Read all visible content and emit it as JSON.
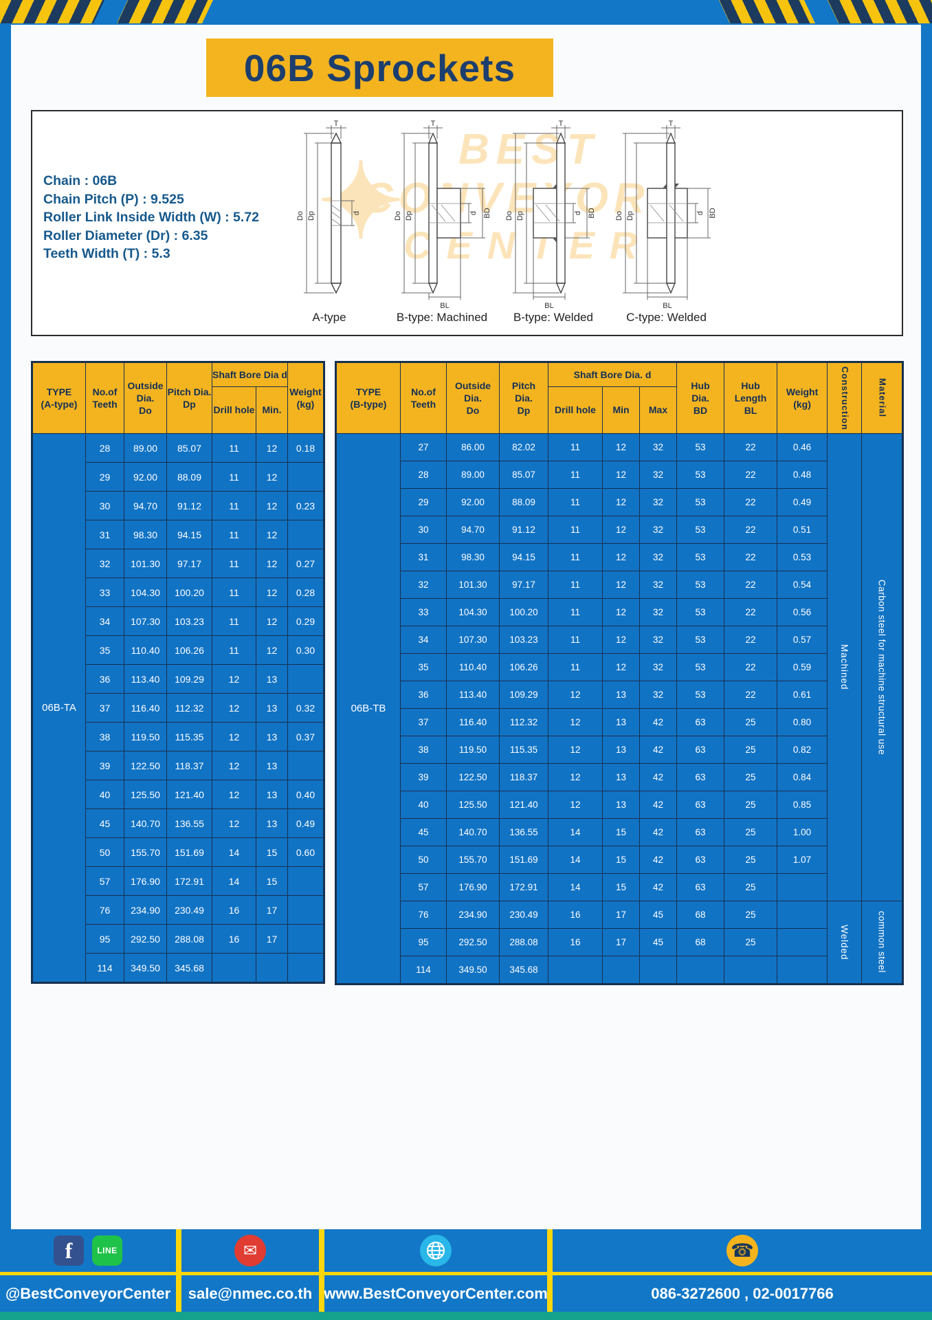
{
  "title": "06B Sprockets",
  "specs": {
    "lines": [
      "Chain : 06B",
      "Chain Pitch (P) : 9.525",
      "Roller Link Inside Width (W) : 5.72",
      "Roller Diameter (Dr) : 6.35",
      "Teeth Width (T) : 5.3"
    ]
  },
  "diagrams": {
    "captions": [
      "A-type",
      "B-type: Machined",
      "B-type: Welded",
      "C-type: Welded"
    ],
    "labels": {
      "T": "T",
      "Do": "Do",
      "Dp": "Dp",
      "d": "d",
      "BD": "BD",
      "BL": "BL"
    }
  },
  "watermark": {
    "line1": "BEST",
    "line2": "CONVEYOR",
    "line3": "CENTER",
    "star": "✦"
  },
  "table_a": {
    "type_label": "06B-TA",
    "headers": {
      "type": "TYPE\n(A-type)",
      "teeth": "No.of\nTeeth",
      "outside": "Outside\nDia.\nDo",
      "pitch": "Pitch Dia.\nDp",
      "bore_group": "Shaft Bore Dia d",
      "drill": "Drill hole",
      "min": "Min.",
      "weight": "Weight\n(kg)"
    },
    "rows": [
      [
        "28",
        "89.00",
        "85.07",
        "11",
        "12",
        "0.18"
      ],
      [
        "29",
        "92.00",
        "88.09",
        "11",
        "12",
        ""
      ],
      [
        "30",
        "94.70",
        "91.12",
        "11",
        "12",
        "0.23"
      ],
      [
        "31",
        "98.30",
        "94.15",
        "11",
        "12",
        ""
      ],
      [
        "32",
        "101.30",
        "97.17",
        "11",
        "12",
        "0.27"
      ],
      [
        "33",
        "104.30",
        "100.20",
        "11",
        "12",
        "0.28"
      ],
      [
        "34",
        "107.30",
        "103.23",
        "11",
        "12",
        "0.29"
      ],
      [
        "35",
        "110.40",
        "106.26",
        "11",
        "12",
        "0.30"
      ],
      [
        "36",
        "113.40",
        "109.29",
        "12",
        "13",
        ""
      ],
      [
        "37",
        "116.40",
        "112.32",
        "12",
        "13",
        "0.32"
      ],
      [
        "38",
        "119.50",
        "115.35",
        "12",
        "13",
        "0.37"
      ],
      [
        "39",
        "122.50",
        "118.37",
        "12",
        "13",
        ""
      ],
      [
        "40",
        "125.50",
        "121.40",
        "12",
        "13",
        "0.40"
      ],
      [
        "45",
        "140.70",
        "136.55",
        "12",
        "13",
        "0.49"
      ],
      [
        "50",
        "155.70",
        "151.69",
        "14",
        "15",
        "0.60"
      ],
      [
        "57",
        "176.90",
        "172.91",
        "14",
        "15",
        ""
      ],
      [
        "76",
        "234.90",
        "230.49",
        "16",
        "17",
        ""
      ],
      [
        "95",
        "292.50",
        "288.08",
        "16",
        "17",
        ""
      ],
      [
        "114",
        "349.50",
        "345.68",
        "",
        "",
        ""
      ]
    ]
  },
  "table_b": {
    "type_label": "06B-TB",
    "headers": {
      "type": "TYPE\n(B-type)",
      "teeth": "No.of\nTeeth",
      "outside": "Outside\nDia.\nDo",
      "pitch": "Pitch\nDia.\nDp",
      "bore_group": "Shaft Bore Dia. d",
      "drill": "Drill hole",
      "min": "Min",
      "max": "Max",
      "hub_dia": "Hub\nDia.\nBD",
      "hub_len": "Hub\nLength\nBL",
      "weight": "Weight\n(kg)",
      "construction": "Construction",
      "material": "Material"
    },
    "rows": [
      [
        "27",
        "86.00",
        "82.02",
        "11",
        "12",
        "32",
        "53",
        "22",
        "0.46"
      ],
      [
        "28",
        "89.00",
        "85.07",
        "11",
        "12",
        "32",
        "53",
        "22",
        "0.48"
      ],
      [
        "29",
        "92.00",
        "88.09",
        "11",
        "12",
        "32",
        "53",
        "22",
        "0.49"
      ],
      [
        "30",
        "94.70",
        "91.12",
        "11",
        "12",
        "32",
        "53",
        "22",
        "0.51"
      ],
      [
        "31",
        "98.30",
        "94.15",
        "11",
        "12",
        "32",
        "53",
        "22",
        "0.53"
      ],
      [
        "32",
        "101.30",
        "97.17",
        "11",
        "12",
        "32",
        "53",
        "22",
        "0.54"
      ],
      [
        "33",
        "104.30",
        "100.20",
        "11",
        "12",
        "32",
        "53",
        "22",
        "0.56"
      ],
      [
        "34",
        "107.30",
        "103.23",
        "11",
        "12",
        "32",
        "53",
        "22",
        "0.57"
      ],
      [
        "35",
        "110.40",
        "106.26",
        "11",
        "12",
        "32",
        "53",
        "22",
        "0.59"
      ],
      [
        "36",
        "113.40",
        "109.29",
        "12",
        "13",
        "32",
        "53",
        "22",
        "0.61"
      ],
      [
        "37",
        "116.40",
        "112.32",
        "12",
        "13",
        "42",
        "63",
        "25",
        "0.80"
      ],
      [
        "38",
        "119.50",
        "115.35",
        "12",
        "13",
        "42",
        "63",
        "25",
        "0.82"
      ],
      [
        "39",
        "122.50",
        "118.37",
        "12",
        "13",
        "42",
        "63",
        "25",
        "0.84"
      ],
      [
        "40",
        "125.50",
        "121.40",
        "12",
        "13",
        "42",
        "63",
        "25",
        "0.85"
      ],
      [
        "45",
        "140.70",
        "136.55",
        "14",
        "15",
        "42",
        "63",
        "25",
        "1.00"
      ],
      [
        "50",
        "155.70",
        "151.69",
        "14",
        "15",
        "42",
        "63",
        "25",
        "1.07"
      ],
      [
        "57",
        "176.90",
        "172.91",
        "14",
        "15",
        "42",
        "63",
        "25",
        ""
      ],
      [
        "76",
        "234.90",
        "230.49",
        "16",
        "17",
        "45",
        "68",
        "25",
        ""
      ],
      [
        "95",
        "292.50",
        "288.08",
        "16",
        "17",
        "45",
        "68",
        "25",
        ""
      ],
      [
        "114",
        "349.50",
        "345.68",
        "",
        "",
        "",
        "",
        "",
        ""
      ]
    ],
    "construction_groups": [
      {
        "label": "Machined",
        "rows": 17
      },
      {
        "label": "Welded",
        "rows": 3
      }
    ],
    "material_groups": [
      {
        "label": "Carbon steel for machine structural use",
        "rows": 17
      },
      {
        "label": "common steel",
        "rows": 3
      }
    ]
  },
  "footer": {
    "items": [
      {
        "label": "@BestConveyorCenter"
      },
      {
        "label": "sale@nmec.co.th"
      },
      {
        "label": "www.BestConveyorCenter.com"
      },
      {
        "label": "086-3272600 , 02-0017766"
      }
    ],
    "glyphs": {
      "facebook": "f",
      "line": "LINE",
      "mail": "✉",
      "phone": "☎"
    }
  }
}
